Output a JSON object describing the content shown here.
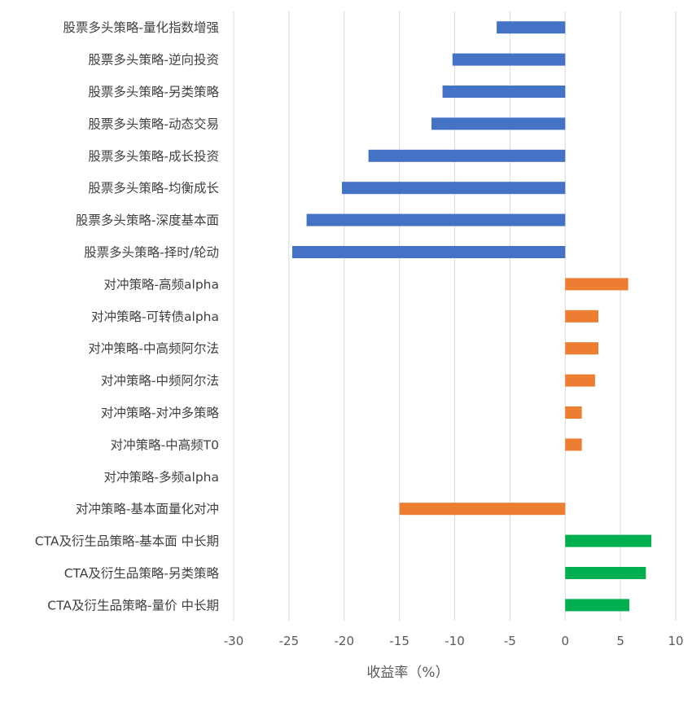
{
  "chart_data": {
    "type": "bar",
    "orientation": "horizontal",
    "xlabel": "收益率（%）",
    "xlim": [
      -30,
      10
    ],
    "xticks": [
      -30,
      -25,
      -20,
      -15,
      -10,
      -5,
      0,
      5,
      10
    ],
    "grid": true,
    "legend": "none",
    "categories": [
      "股票多头策略-量化指数增强",
      "股票多头策略-逆向投资",
      "股票多头策略-另类策略",
      "股票多头策略-动态交易",
      "股票多头策略-成长投资",
      "股票多头策略-均衡成长",
      "股票多头策略-深度基本面",
      "股票多头策略-择时/轮动",
      "对冲策略-高频alpha",
      "对冲策略-可转债alpha",
      "对冲策略-中高频阿尔法",
      "对冲策略-中频阿尔法",
      "对冲策略-对冲多策略",
      "对冲策略-中高频T0",
      "对冲策略-多频alpha",
      "对冲策略-基本面量化对冲",
      "CTA及衍生品策略-基本面 中长期",
      "CTA及衍生品策略-另类策略",
      "CTA及衍生品策略-量价 中长期"
    ],
    "values": [
      -6.2,
      -10.2,
      -11.1,
      -12.1,
      -17.8,
      -20.2,
      -23.4,
      -24.7,
      5.7,
      3.0,
      3.0,
      2.7,
      1.5,
      1.5,
      0.0,
      -15.0,
      7.8,
      7.3,
      5.8
    ],
    "colors": [
      "#4472C4",
      "#4472C4",
      "#4472C4",
      "#4472C4",
      "#4472C4",
      "#4472C4",
      "#4472C4",
      "#4472C4",
      "#ED7D31",
      "#ED7D31",
      "#ED7D31",
      "#ED7D31",
      "#ED7D31",
      "#ED7D31",
      "#ED7D31",
      "#ED7D31",
      "#00B050",
      "#00B050",
      "#00B050"
    ]
  }
}
